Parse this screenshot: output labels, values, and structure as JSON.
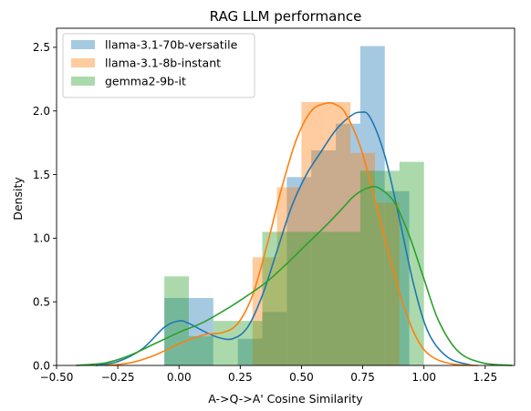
{
  "chart_data": {
    "type": "bar",
    "title": "RAG LLM performance",
    "xlabel": "A->Q->A' Cosine Similarity",
    "ylabel": "Density",
    "xlim": [
      -0.5,
      1.37
    ],
    "ylim": [
      0,
      2.65
    ],
    "xticks": [
      -0.5,
      -0.25,
      0.0,
      0.25,
      0.5,
      0.75,
      1.0,
      1.25
    ],
    "xtick_labels": [
      "−0.50",
      "−0.25",
      "0.00",
      "0.25",
      "0.50",
      "0.75",
      "1.00",
      "1.25"
    ],
    "yticks": [
      0.0,
      0.5,
      1.0,
      1.5,
      2.0,
      2.5
    ],
    "ytick_labels": [
      "0.0",
      "0.5",
      "1.0",
      "1.5",
      "2.0",
      "2.5"
    ],
    "legend_position": "top-left",
    "bar_opacity": 0.4,
    "series": [
      {
        "name": "llama-3.1-70b-versatile",
        "color": "#1f77b4",
        "bins": [
          {
            "x0": -0.06,
            "x1": 0.04,
            "density": 0.53
          },
          {
            "x0": 0.04,
            "x1": 0.14,
            "density": 0.53
          },
          {
            "x0": 0.14,
            "x1": 0.24,
            "density": 0.0
          },
          {
            "x0": 0.24,
            "x1": 0.34,
            "density": 0.21
          },
          {
            "x0": 0.34,
            "x1": 0.44,
            "density": 0.42
          },
          {
            "x0": 0.44,
            "x1": 0.54,
            "density": 1.48
          },
          {
            "x0": 0.54,
            "x1": 0.64,
            "density": 1.69
          },
          {
            "x0": 0.64,
            "x1": 0.74,
            "density": 1.9
          },
          {
            "x0": 0.74,
            "x1": 0.84,
            "density": 2.51
          },
          {
            "x0": 0.84,
            "x1": 0.94,
            "density": 1.37
          }
        ],
        "kde": {
          "x": [
            -0.34,
            -0.25,
            -0.15,
            -0.06,
            0.0,
            0.04,
            0.1,
            0.16,
            0.22,
            0.28,
            0.34,
            0.4,
            0.46,
            0.52,
            0.58,
            0.64,
            0.7,
            0.74,
            0.78,
            0.84,
            0.9,
            0.96,
            1.02,
            1.1,
            1.2
          ],
          "y": [
            0.0,
            0.03,
            0.13,
            0.3,
            0.35,
            0.33,
            0.27,
            0.22,
            0.21,
            0.3,
            0.55,
            0.9,
            1.25,
            1.5,
            1.68,
            1.85,
            1.96,
            1.99,
            1.95,
            1.65,
            1.15,
            0.62,
            0.25,
            0.06,
            0.0
          ]
        }
      },
      {
        "name": "llama-3.1-8b-instant",
        "color": "#ff7f0e",
        "bins": [
          {
            "x0": 0.25,
            "x1": 0.3,
            "density": 0.0
          },
          {
            "x0": 0.3,
            "x1": 0.4,
            "density": 0.85
          },
          {
            "x0": 0.4,
            "x1": 0.5,
            "density": 1.4
          },
          {
            "x0": 0.5,
            "x1": 0.6,
            "density": 2.07
          },
          {
            "x0": 0.6,
            "x1": 0.7,
            "density": 2.07
          },
          {
            "x0": 0.7,
            "x1": 0.8,
            "density": 1.67
          },
          {
            "x0": 0.8,
            "x1": 0.9,
            "density": 1.28
          },
          {
            "x0": 0.9,
            "x1": 0.94,
            "density": 0.0
          }
        ],
        "kde": {
          "x": [
            -0.3,
            -0.2,
            -0.1,
            0.0,
            0.1,
            0.18,
            0.24,
            0.3,
            0.36,
            0.42,
            0.48,
            0.54,
            0.6,
            0.64,
            0.68,
            0.74,
            0.8,
            0.86,
            0.92,
            0.98,
            1.04,
            1.12,
            1.22
          ],
          "y": [
            0.0,
            0.02,
            0.08,
            0.17,
            0.24,
            0.26,
            0.33,
            0.55,
            0.95,
            1.4,
            1.78,
            2.0,
            2.06,
            2.05,
            1.98,
            1.72,
            1.3,
            0.85,
            0.45,
            0.18,
            0.06,
            0.01,
            0.0
          ]
        }
      },
      {
        "name": "gemma2-9b-it",
        "color": "#2ca02c",
        "bins": [
          {
            "x0": -0.06,
            "x1": 0.04,
            "density": 0.7
          },
          {
            "x0": 0.04,
            "x1": 0.14,
            "density": 0.23
          },
          {
            "x0": 0.14,
            "x1": 0.34,
            "density": 0.35
          },
          {
            "x0": 0.34,
            "x1": 0.44,
            "density": 1.05
          },
          {
            "x0": 0.44,
            "x1": 0.54,
            "density": 1.05
          },
          {
            "x0": 0.54,
            "x1": 0.74,
            "density": 1.05
          },
          {
            "x0": 0.74,
            "x1": 0.84,
            "density": 1.53
          },
          {
            "x0": 0.84,
            "x1": 0.9,
            "density": 1.53
          },
          {
            "x0": 0.9,
            "x1": 1.0,
            "density": 1.6
          }
        ],
        "kde": {
          "x": [
            -0.42,
            -0.3,
            -0.2,
            -0.1,
            0.0,
            0.1,
            0.2,
            0.28,
            0.36,
            0.44,
            0.52,
            0.6,
            0.66,
            0.72,
            0.78,
            0.82,
            0.88,
            0.94,
            1.0,
            1.06,
            1.14,
            1.24,
            1.36
          ],
          "y": [
            0.0,
            0.02,
            0.08,
            0.17,
            0.26,
            0.34,
            0.45,
            0.55,
            0.66,
            0.8,
            0.95,
            1.1,
            1.22,
            1.34,
            1.4,
            1.39,
            1.28,
            1.02,
            0.68,
            0.35,
            0.11,
            0.02,
            0.0
          ]
        }
      }
    ]
  }
}
